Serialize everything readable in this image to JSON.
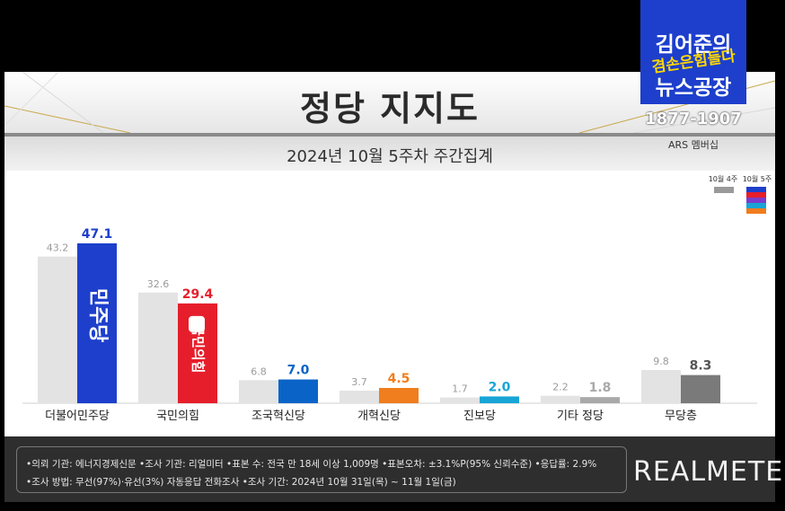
{
  "title": "정당 지지도",
  "subtitle": "2024년 10월 5주차 주간집계",
  "broadcast": {
    "logo_line1": "김어준의",
    "logo_line2": "겸손은힘들다",
    "logo_line3": "뉴스공장",
    "hotline": "1877-1907",
    "ars_label": "ARS 멤버십"
  },
  "legend": {
    "prev_label": "10월 4주",
    "curr_label": "10월 5주"
  },
  "footer": {
    "line1": "•의뢰 기관: 에너지경제신문  •조사 기관: 리얼미터 •표본 수: 전국 만 18세 이상 1,009명 •표본오차: ±3.1%P(95% 신뢰수준) •응답률: 2.9%",
    "line2": "•조사 방법: 무선(97%)·유선(3%) 자동응답 전화조사 •조사 기간: 2024년 10월 31일(목) ~ 11월 1일(금)",
    "brand": "REALMETER"
  },
  "chart_data": {
    "type": "bar",
    "categories": [
      "더불어민주당",
      "국민의힘",
      "조국혁신당",
      "개혁신당",
      "진보당",
      "기타 정당",
      "무당층"
    ],
    "series": [
      {
        "name": "10월 4주",
        "values": [
          43.2,
          32.6,
          6.8,
          3.7,
          1.7,
          2.2,
          9.8
        ]
      },
      {
        "name": "10월 5주",
        "values": [
          47.1,
          29.4,
          7.0,
          4.5,
          2.0,
          1.8,
          8.3
        ]
      }
    ],
    "prev_labels": [
      "43.2",
      "32.6",
      "6.8",
      "3.7",
      "1.7",
      "2.2",
      "9.8"
    ],
    "curr_labels": [
      "47.1",
      "29.4",
      "7.0",
      "4.5",
      "2.0",
      "1.8",
      "8.3"
    ],
    "bar_logos": [
      "민주당",
      "국민의힘"
    ],
    "colors": {
      "prev": "#e3e3e3",
      "curr": [
        "#1d3fcc",
        "#e61e2b",
        "#0a64c8",
        "#f07d1e",
        "#18a5d6",
        "#a9a9a9",
        "#7a7a7a"
      ],
      "value_text": [
        "#1d3fcc",
        "#e61e2b",
        "#0a64c8",
        "#f07d1e",
        "#18a5d6",
        "#a9a9a9",
        "#555555"
      ]
    },
    "ylim": [
      0,
      50
    ]
  }
}
